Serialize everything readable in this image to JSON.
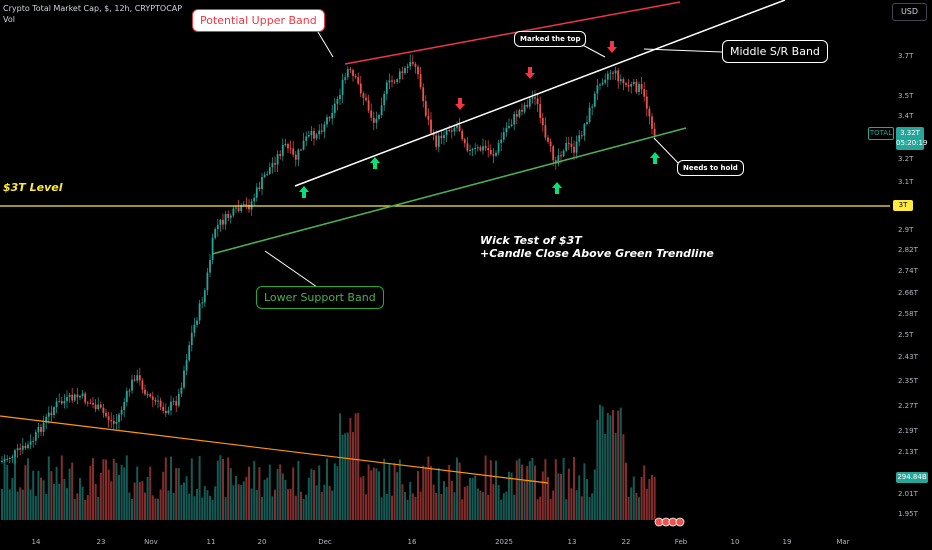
{
  "header": {
    "symbol_line": "Crypto Total Market Cap, $, 12h, CRYPTOCAP",
    "vol_label": "Vol"
  },
  "currency_button": "USD",
  "price_axis": {
    "labels": [
      "3.7T",
      "3.5T",
      "3.4T",
      "3.3T",
      "3.2T",
      "3.1T",
      "2.9T",
      "2.82T",
      "2.74T",
      "2.66T",
      "2.58T",
      "2.5T",
      "2.43T",
      "2.35T",
      "2.27T",
      "2.19T",
      "2.13T",
      "2.01T",
      "1.95T"
    ],
    "highlight_level_label": "3T",
    "current_tag": {
      "symbol": "TOTAL",
      "price": "3.32T",
      "countdown": "05:20:19"
    },
    "volume_tag": "294.84B"
  },
  "time_axis": {
    "labels": [
      "14",
      "23",
      "Nov",
      "11",
      "20",
      "Dec",
      "16",
      "2025",
      "13",
      "22",
      "Feb",
      "10",
      "19",
      "Mar"
    ]
  },
  "annotations": {
    "potential_upper_band": "Potential Upper Band",
    "middle_sr_band": "Middle S/R Band",
    "marked_the_top": "Marked the top",
    "needs_to_hold": "Needs to hold",
    "lower_support_band": "Lower Support Band",
    "level_3t": "$3T Level",
    "wick_test_line1": "Wick Test of $3T",
    "wick_test_line2": "+Candle Close Above Green Trendline"
  },
  "colors": {
    "background": "#000000",
    "up": "#26a69a",
    "down": "#ef5350",
    "upper_band": "#f23645",
    "middle_band": "#ffffff",
    "lower_band": "#4caf50",
    "level": "#ffeb3b",
    "volume_trend": "#ff9800",
    "arrow_up": "#00e676",
    "arrow_down": "#f23645"
  },
  "icons": [
    "arrow-up-icon",
    "arrow-down-icon",
    "flag-icon"
  ]
}
